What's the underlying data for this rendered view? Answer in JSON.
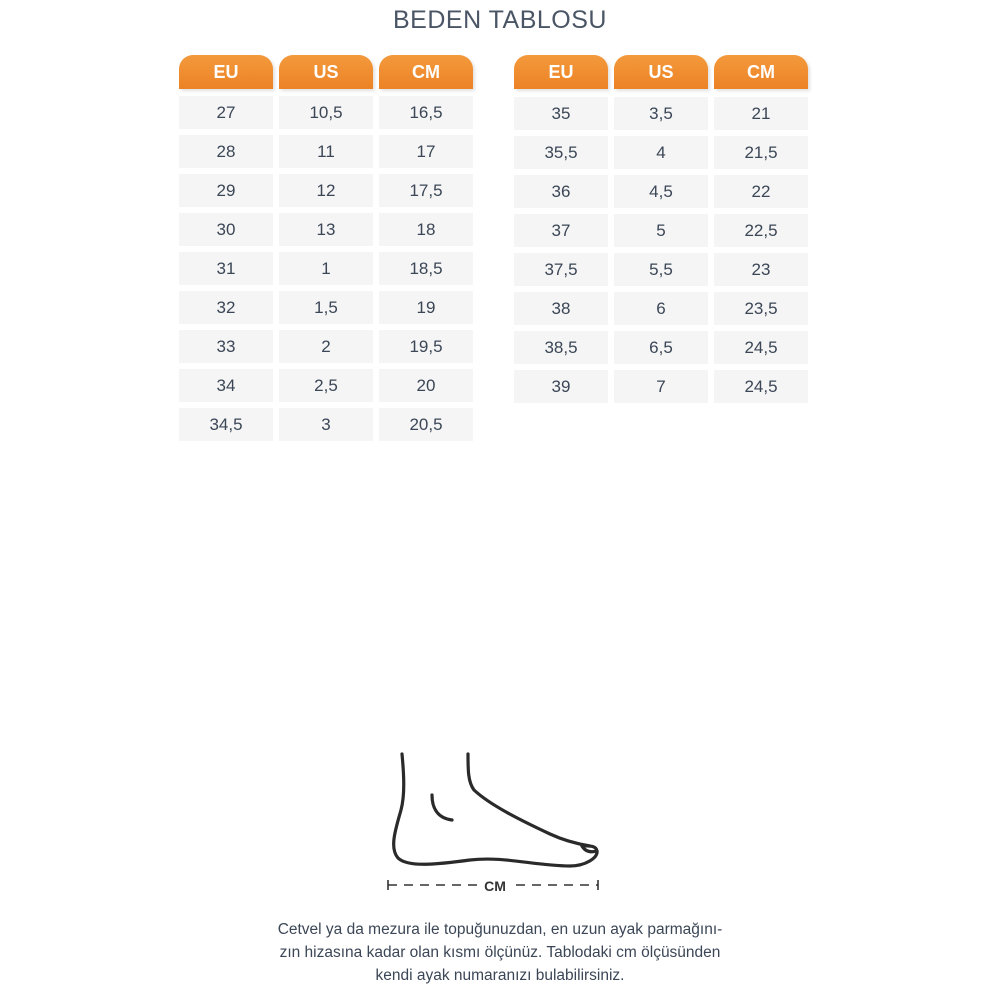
{
  "title": "BEDEN TABLOSU",
  "tables": [
    {
      "headers": [
        "EU",
        "US",
        "CM"
      ],
      "rows": [
        [
          "27",
          "10,5",
          "16,5"
        ],
        [
          "28",
          "11",
          "17"
        ],
        [
          "29",
          "12",
          "17,5"
        ],
        [
          "30",
          "13",
          "18"
        ],
        [
          "31",
          "1",
          "18,5"
        ],
        [
          "32",
          "1,5",
          "19"
        ],
        [
          "33",
          "2",
          "19,5"
        ],
        [
          "34",
          "2,5",
          "20"
        ],
        [
          "34,5",
          "3",
          "20,5"
        ]
      ]
    },
    {
      "headers": [
        "EU",
        "US",
        "CM"
      ],
      "rows": [
        [
          "35",
          "3,5",
          "21"
        ],
        [
          "35,5",
          "4",
          "21,5"
        ],
        [
          "36",
          "4,5",
          "22"
        ],
        [
          "37",
          "5",
          "22,5"
        ],
        [
          "37,5",
          "5,5",
          "23"
        ],
        [
          "38",
          "6",
          "23,5"
        ],
        [
          "38,5",
          "6,5",
          "24,5"
        ],
        [
          "39",
          "7",
          "24,5"
        ]
      ]
    }
  ],
  "header_color": "#ED8428",
  "foot": {
    "icon": "foot-outline-icon",
    "measure_label": "CM"
  },
  "description": [
    "Cetvel ya da mezura ile topuğunuzdan, en uzun ayak parmağını-",
    "zın hizasına kadar olan kısmı ölçünüz. Tablodaki cm ölçüsünden",
    "kendi ayak numaranızı bulabilirsiniz."
  ]
}
